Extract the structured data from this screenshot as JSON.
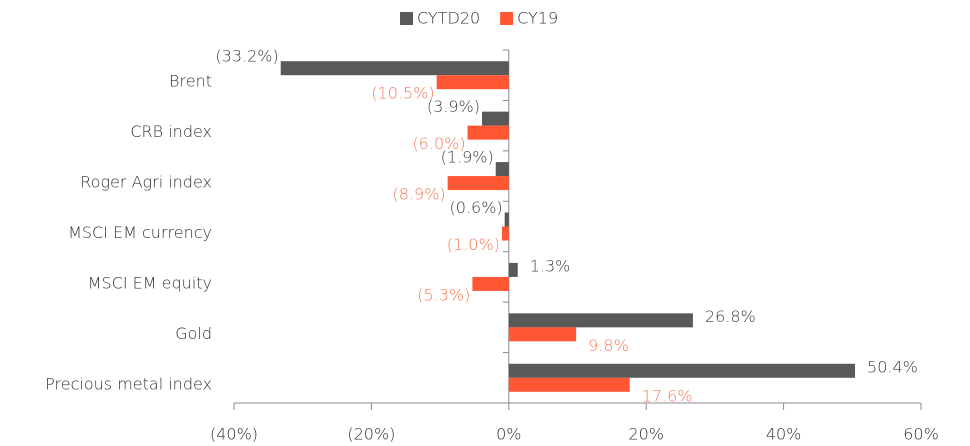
{
  "chart_data": {
    "type": "hbar",
    "categories": [
      "Brent",
      "CRB index",
      "Roger Agri index",
      "MSCI EM currency",
      "MSCI EM equity",
      "Gold",
      "Precious metal index"
    ],
    "series": [
      {
        "name": "CYTD20",
        "color": "#595959",
        "label_color": "#404040",
        "values": [
          -33.2,
          -3.9,
          -1.9,
          -0.6,
          1.3,
          26.8,
          50.4
        ],
        "value_labels": [
          "(33.2%)",
          "(3.9%)",
          "(1.9%)",
          "(0.6%)",
          "1.3%",
          "26.8%",
          "50.4%"
        ]
      },
      {
        "name": "CY19",
        "color": "#ff5733",
        "label_color": "#f47a5a",
        "values": [
          -10.5,
          -6.0,
          -8.9,
          -1.0,
          -5.3,
          9.8,
          17.6
        ],
        "value_labels": [
          "(10.5%)",
          "(6.0%)",
          "(8.9%)",
          "(1.0%)",
          "(5.3%)",
          "9.8%",
          "17.6%"
        ]
      }
    ],
    "xlim": [
      -40,
      60
    ],
    "xticks": [
      {
        "value": -40,
        "label": "(40%)"
      },
      {
        "value": -20,
        "label": "(20%)"
      },
      {
        "value": 0,
        "label": "0%"
      },
      {
        "value": 20,
        "label": "20%"
      },
      {
        "value": 40,
        "label": "40%"
      },
      {
        "value": 60,
        "label": "60%"
      }
    ],
    "legend": "top"
  }
}
